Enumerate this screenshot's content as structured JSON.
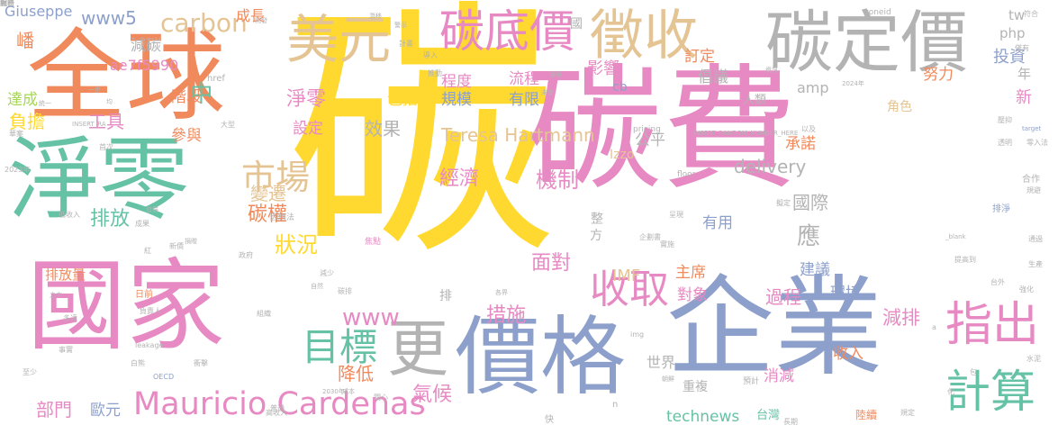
{
  "palette": {
    "orange": "#F08A5D",
    "green": "#66C2A5",
    "pink": "#E78AC3",
    "yellow": "#FFD92F",
    "blue": "#8DA0CB",
    "grey": "#B3B3B3",
    "tan": "#E5C494",
    "lime": "#A6D854"
  },
  "words": [
    {
      "text": "碳",
      "color": "#FFD92F"
    },
    {
      "text": "碳費",
      "color": "#E78AC3"
    },
    {
      "text": "全球",
      "color": "#F08A5D"
    },
    {
      "text": "淨零",
      "color": "#66C2A5"
    },
    {
      "text": "國家",
      "color": "#E78AC3"
    },
    {
      "text": "企業",
      "color": "#8DA0CB"
    },
    {
      "text": "價格",
      "color": "#8DA0CB"
    },
    {
      "text": "徵收",
      "color": "#E5C494"
    },
    {
      "text": "碳定價",
      "color": "#B3B3B3"
    },
    {
      "text": "美元",
      "color": "#E5C494"
    },
    {
      "text": "碳底價",
      "color": "#E78AC3"
    },
    {
      "text": "更",
      "color": "#B3B3B3"
    },
    {
      "text": "指出",
      "color": "#E78AC3"
    },
    {
      "text": "計算",
      "color": "#66C2A5"
    },
    {
      "text": "收取",
      "color": "#E78AC3"
    },
    {
      "text": "目標",
      "color": "#66C2A5"
    },
    {
      "text": "市場",
      "color": "#E5C494"
    },
    {
      "text": "Mauricio Cardenas",
      "color": "#E78AC3"
    },
    {
      "text": "carbon",
      "color": "#E5C494"
    },
    {
      "text": "www5",
      "color": "#8DA0CB"
    },
    {
      "text": "Giuseppe",
      "color": "#8DA0CB"
    },
    {
      "text": "成長",
      "color": "#F08A5D"
    },
    {
      "text": "經濟",
      "color": "#E78AC3"
    },
    {
      "text": "機制",
      "color": "#E78AC3"
    },
    {
      "text": "碳權",
      "color": "#F08A5D"
    },
    {
      "text": "狀況",
      "color": "#FFD92F"
    },
    {
      "text": "排放",
      "color": "#66C2A5"
    },
    {
      "text": "變遷",
      "color": "#E5C494"
    },
    {
      "text": "淨零",
      "color": "#E78AC3"
    },
    {
      "text": "效果",
      "color": "#B3B3B3"
    },
    {
      "text": "Teresa Hartmann",
      "color": "#E5C494"
    },
    {
      "text": "規模",
      "color": "#8DA0CB"
    },
    {
      "text": "有限",
      "color": "#8DA0CB"
    },
    {
      "text": "程度",
      "color": "#E78AC3"
    },
    {
      "text": "流程",
      "color": "#E78AC3"
    },
    {
      "text": "影響",
      "color": "#E78AC3"
    },
    {
      "text": "訂定",
      "color": "#F08A5D"
    },
    {
      "text": "倡議",
      "color": "#B3B3B3"
    },
    {
      "text": "努力",
      "color": "#F08A5D"
    },
    {
      "text": "投資",
      "color": "#8DA0CB"
    },
    {
      "text": "php",
      "color": "#B3B3B3"
    },
    {
      "text": "tw",
      "color": "#B3B3B3"
    },
    {
      "text": "年",
      "color": "#B3B3B3"
    },
    {
      "text": "amp",
      "color": "#B3B3B3"
    },
    {
      "text": "角色",
      "color": "#E5C494"
    },
    {
      "text": "人類",
      "color": "#B3B3B3"
    },
    {
      "text": "新",
      "color": "#E78AC3"
    },
    {
      "text": "國際",
      "color": "#B3B3B3"
    },
    {
      "text": "應",
      "color": "#B3B3B3"
    },
    {
      "text": "delivery",
      "color": "#B3B3B3"
    },
    {
      "text": "公平",
      "color": "#B3B3B3"
    },
    {
      "text": "承諾",
      "color": "#F08A5D"
    },
    {
      "text": "Izzo",
      "color": "#E5C494"
    },
    {
      "text": "cb",
      "color": "#8DA0CB"
    },
    {
      "text": "中",
      "color": "#66C2A5"
    },
    {
      "text": "IMF",
      "color": "#E5C494"
    },
    {
      "text": "有用",
      "color": "#8DA0CB"
    },
    {
      "text": "面對",
      "color": "#E78AC3"
    },
    {
      "text": "主席",
      "color": "#F08A5D"
    },
    {
      "text": "過程",
      "color": "#E78AC3"
    },
    {
      "text": "對象",
      "color": "#E78AC3"
    },
    {
      "text": "建議",
      "color": "#8DA0CB"
    },
    {
      "text": "環境",
      "color": "#8DA0CB"
    },
    {
      "text": "減排",
      "color": "#E78AC3"
    },
    {
      "text": "措施",
      "color": "#E78AC3"
    },
    {
      "text": "www",
      "color": "#E78AC3"
    },
    {
      "text": "降低",
      "color": "#F08A5D"
    },
    {
      "text": "氣候",
      "color": "#E78AC3"
    },
    {
      "text": "世界",
      "color": "#B3B3B3"
    },
    {
      "text": "消減",
      "color": "#E78AC3"
    },
    {
      "text": "收入",
      "color": "#F08A5D"
    },
    {
      "text": "重複",
      "color": "#B3B3B3"
    },
    {
      "text": "technews",
      "color": "#66C2A5"
    },
    {
      "text": "台灣",
      "color": "#66C2A5"
    },
    {
      "text": "陸續",
      "color": "#F08A5D"
    },
    {
      "text": "部門",
      "color": "#E78AC3"
    },
    {
      "text": "歐元",
      "color": "#8DA0CB"
    },
    {
      "text": "排放量",
      "color": "#F08A5D"
    },
    {
      "text": "嶓",
      "color": "#F08A5D"
    },
    {
      "text": "減碳",
      "color": "#B3B3B3"
    },
    {
      "text": "達成",
      "color": "#A6D854"
    },
    {
      "text": "負擔",
      "color": "#FFD92F"
    },
    {
      "text": "工具",
      "color": "#E78AC3"
    },
    {
      "text": "階段",
      "color": "#F08A5D"
    },
    {
      "text": "參與",
      "color": "#F08A5D"
    },
    {
      "text": "ae7f5990",
      "color": "#E78AC3"
    },
    {
      "text": "包括",
      "color": "#FFD92F"
    },
    {
      "text": "設定",
      "color": "#E78AC3"
    },
    {
      "text": "整",
      "color": "#B3B3B3"
    },
    {
      "text": "方",
      "color": "#B3B3B3"
    },
    {
      "text": "排",
      "color": "#B3B3B3"
    },
    {
      "text": "國",
      "color": "#B3B3B3"
    },
    {
      "text": "zoneid",
      "color": "#B3B3B3"
    },
    {
      "text": "pricing",
      "color": "#B3B3B3"
    },
    {
      "text": "INSERT_RANDOM_NUMBER_HERE",
      "color": "#B3B3B3"
    },
    {
      "text": "INSERT_RA",
      "color": "#B3B3B3"
    },
    {
      "text": "href",
      "color": "#B3B3B3"
    },
    {
      "text": "_blank",
      "color": "#B3B3B3"
    },
    {
      "text": "ck",
      "color": "#E78AC3"
    },
    {
      "text": "floor",
      "color": "#B3B3B3"
    },
    {
      "text": "target",
      "color": "#8DA0CB"
    },
    {
      "text": "2024年",
      "color": "#B3B3B3"
    },
    {
      "text": "2023年",
      "color": "#B3B3B3"
    },
    {
      "text": "2030年",
      "color": "#B3B3B3"
    },
    {
      "text": "OECD",
      "color": "#8DA0CB"
    },
    {
      "text": "leakage",
      "color": "#B3B3B3"
    },
    {
      "text": "img",
      "color": "#B3B3B3"
    },
    {
      "text": "n",
      "color": "#B3B3B3"
    },
    {
      "text": "a",
      "color": "#B3B3B3"
    },
    {
      "text": "快",
      "color": "#B3B3B3"
    },
    {
      "text": "化",
      "color": "#B3B3B3"
    },
    {
      "text": "各界",
      "color": "#B3B3B3"
    },
    {
      "text": "成本",
      "color": "#B3B3B3"
    },
    {
      "text": "關心",
      "color": "#B3B3B3"
    },
    {
      "text": "自然",
      "color": "#B3B3B3"
    },
    {
      "text": "焦點",
      "color": "#E78AC3"
    },
    {
      "text": "實施",
      "color": "#B3B3B3"
    },
    {
      "text": "日前",
      "color": "#F08A5D"
    },
    {
      "text": "負責人",
      "color": "#B3B3B3"
    },
    {
      "text": "低收入",
      "color": "#B3B3B3"
    },
    {
      "text": "大型",
      "color": "#B3B3B3"
    },
    {
      "text": "華案",
      "color": "#B3B3B3"
    },
    {
      "text": "首次",
      "color": "#B3B3B3"
    },
    {
      "text": "統一",
      "color": "#B3B3B3"
    },
    {
      "text": "開發",
      "color": "#B3B3B3"
    },
    {
      "text": "潛移",
      "color": "#B3B3B3"
    },
    {
      "text": "警示",
      "color": "#B3B3B3"
    },
    {
      "text": "計畫",
      "color": "#B3B3B3"
    },
    {
      "text": "導入",
      "color": "#B3B3B3"
    },
    {
      "text": "推動",
      "color": "#B3B3B3"
    },
    {
      "text": "遷境",
      "color": "#B3B3B3"
    },
    {
      "text": "未營",
      "color": "#B3B3B3"
    },
    {
      "text": "資訊",
      "color": "#B3B3B3"
    },
    {
      "text": "壓抑",
      "color": "#B3B3B3"
    },
    {
      "text": "僅有",
      "color": "#B3B3B3"
    },
    {
      "text": "符合",
      "color": "#B3B3B3"
    },
    {
      "text": "合作",
      "color": "#B3B3B3"
    },
    {
      "text": "排淨",
      "color": "#8DA0CB"
    },
    {
      "text": "通過",
      "color": "#B3B3B3"
    },
    {
      "text": "生產",
      "color": "#B3B3B3"
    },
    {
      "text": "預計",
      "color": "#B3B3B3"
    },
    {
      "text": "因應法",
      "color": "#B3B3B3"
    },
    {
      "text": "零入法",
      "color": "#B3B3B3"
    },
    {
      "text": "透明",
      "color": "#B3B3B3"
    },
    {
      "text": "規避",
      "color": "#B3B3B3"
    },
    {
      "text": "規定",
      "color": "#B3B3B3"
    },
    {
      "text": "水泥",
      "color": "#B3B3B3"
    },
    {
      "text": "呈現",
      "color": "#B3B3B3"
    },
    {
      "text": "企劃書",
      "color": "#B3B3B3"
    },
    {
      "text": "長期",
      "color": "#B3B3B3"
    },
    {
      "text": "普通",
      "color": "#B3B3B3"
    },
    {
      "text": "一步",
      "color": "#B3B3B3"
    },
    {
      "text": "朝鮮",
      "color": "#B3B3B3"
    },
    {
      "text": "新價",
      "color": "#B3B3B3"
    },
    {
      "text": "至少",
      "color": "#B3B3B3"
    },
    {
      "text": "事實",
      "color": "#B3B3B3"
    },
    {
      "text": "多達",
      "color": "#B3B3B3"
    },
    {
      "text": "政府",
      "color": "#B3B3B3"
    },
    {
      "text": "組織",
      "color": "#B3B3B3"
    },
    {
      "text": "紅",
      "color": "#B3B3B3"
    },
    {
      "text": "成果",
      "color": "#B3B3B3"
    },
    {
      "text": "高收入",
      "color": "#B3B3B3"
    },
    {
      "text": "減少",
      "color": "#B3B3B3"
    },
    {
      "text": "碳排",
      "color": "#B3B3B3"
    },
    {
      "text": "提高到",
      "color": "#B3B3B3"
    },
    {
      "text": "以及",
      "color": "#B3B3B3"
    },
    {
      "text": "發展",
      "color": "#B3B3B3"
    },
    {
      "text": "擬定",
      "color": "#B3B3B3"
    },
    {
      "text": "強化",
      "color": "#B3B3B3"
    },
    {
      "text": "包",
      "color": "#B3B3B3"
    },
    {
      "text": "均",
      "color": "#B3B3B3"
    },
    {
      "text": "白熊",
      "color": "#B3B3B3"
    },
    {
      "text": "衝擊",
      "color": "#B3B3B3"
    },
    {
      "text": "之中",
      "color": "#B3B3B3"
    },
    {
      "text": "台外",
      "color": "#B3B3B3"
    },
    {
      "text": "捐贈",
      "color": "#B3B3B3"
    },
    {
      "text": "報告",
      "color": "#B3B3B3"
    },
    {
      "text": "現象",
      "color": "#B3B3B3"
    },
    {
      "text": "同時",
      "color": "#B3B3B3"
    },
    {
      "text": "對",
      "color": "#B3B3B3"
    }
  ]
}
